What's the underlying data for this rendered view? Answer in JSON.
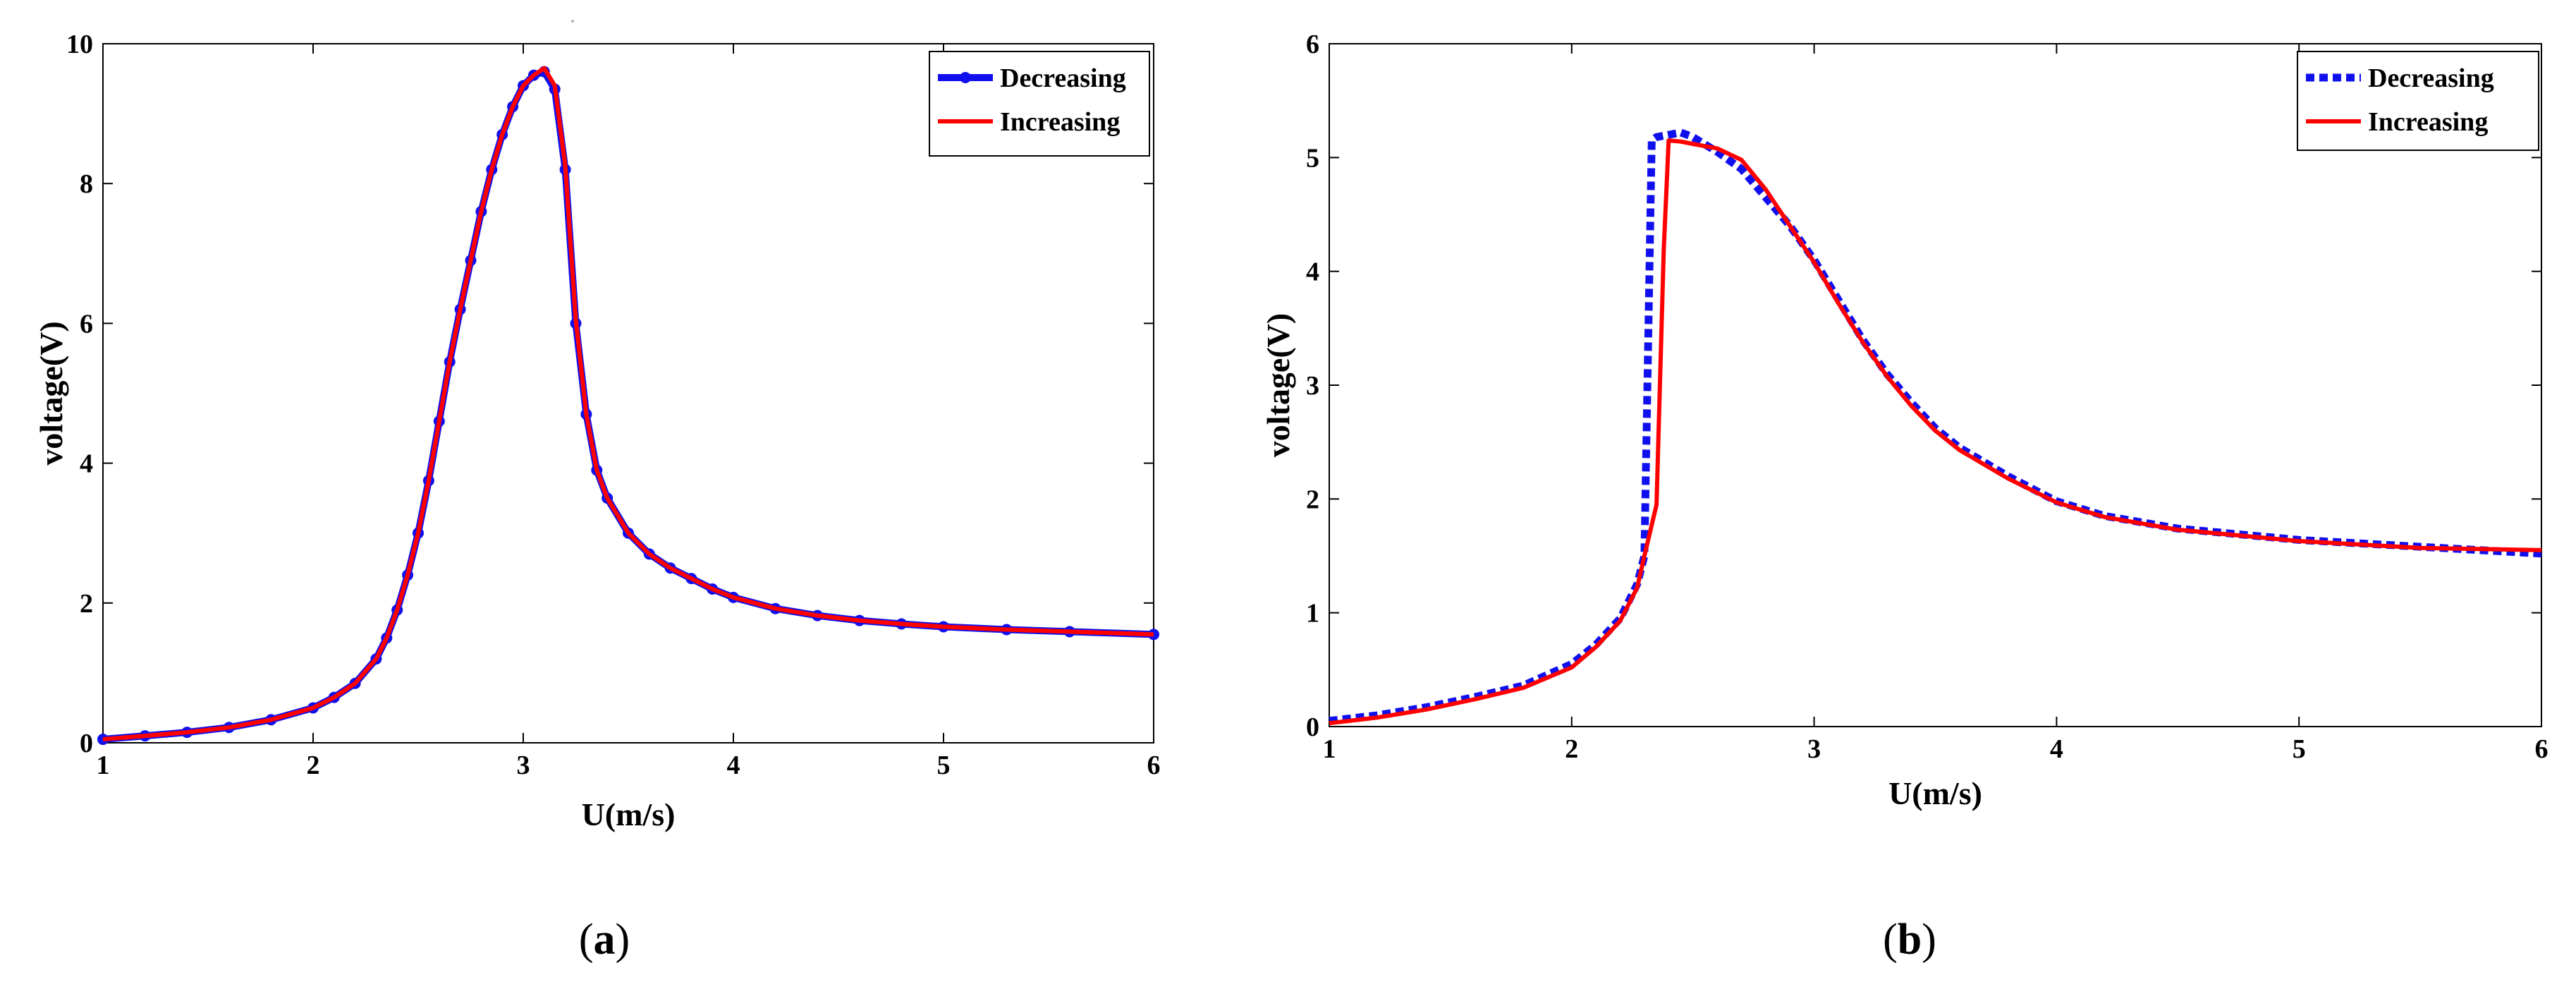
{
  "chart_data": [
    {
      "type": "line",
      "panel_label": "(a)",
      "panel_letter": "a",
      "xlabel": "U(m/s)",
      "ylabel": "voltage(V)",
      "xlim": [
        1,
        6
      ],
      "ylim": [
        0,
        10
      ],
      "xticks": [
        1,
        2,
        3,
        4,
        5,
        6
      ],
      "yticks": [
        0,
        2,
        4,
        6,
        8,
        10
      ],
      "grid": false,
      "legend_position": "top-right",
      "series": [
        {
          "name": "Decreasing",
          "color": "#1010ee",
          "style": "solid-markers",
          "x": [
            1.0,
            1.2,
            1.4,
            1.6,
            1.8,
            2.0,
            2.1,
            2.2,
            2.3,
            2.35,
            2.4,
            2.45,
            2.5,
            2.55,
            2.6,
            2.65,
            2.7,
            2.75,
            2.8,
            2.85,
            2.9,
            2.95,
            3.0,
            3.05,
            3.1,
            3.15,
            3.2,
            3.25,
            3.3,
            3.35,
            3.4,
            3.5,
            3.6,
            3.7,
            3.8,
            3.9,
            4.0,
            4.2,
            4.4,
            4.6,
            4.8,
            5.0,
            5.3,
            5.6,
            6.0
          ],
          "y": [
            0.05,
            0.1,
            0.15,
            0.22,
            0.33,
            0.5,
            0.65,
            0.85,
            1.2,
            1.5,
            1.9,
            2.4,
            3.0,
            3.75,
            4.6,
            5.45,
            6.2,
            6.9,
            7.6,
            8.2,
            8.7,
            9.1,
            9.4,
            9.55,
            9.6,
            9.35,
            8.2,
            6.0,
            4.7,
            3.9,
            3.5,
            3.0,
            2.7,
            2.5,
            2.35,
            2.2,
            2.08,
            1.92,
            1.82,
            1.75,
            1.7,
            1.66,
            1.62,
            1.59,
            1.55
          ]
        },
        {
          "name": "Increasing",
          "color": "#ff0000",
          "style": "solid",
          "x": [
            1.0,
            1.2,
            1.4,
            1.6,
            1.8,
            2.0,
            2.1,
            2.2,
            2.3,
            2.35,
            2.4,
            2.45,
            2.5,
            2.55,
            2.6,
            2.65,
            2.7,
            2.75,
            2.8,
            2.85,
            2.9,
            2.95,
            3.0,
            3.05,
            3.1,
            3.15,
            3.2,
            3.25,
            3.3,
            3.35,
            3.4,
            3.5,
            3.6,
            3.7,
            3.8,
            3.9,
            4.0,
            4.2,
            4.4,
            4.6,
            4.8,
            5.0,
            5.3,
            5.6,
            6.0
          ],
          "y": [
            0.05,
            0.1,
            0.15,
            0.22,
            0.33,
            0.5,
            0.65,
            0.85,
            1.2,
            1.5,
            1.9,
            2.4,
            3.0,
            3.75,
            4.6,
            5.45,
            6.2,
            6.9,
            7.6,
            8.2,
            8.7,
            9.1,
            9.4,
            9.55,
            9.65,
            9.4,
            8.25,
            6.05,
            4.7,
            3.9,
            3.5,
            3.0,
            2.7,
            2.5,
            2.35,
            2.2,
            2.08,
            1.92,
            1.82,
            1.75,
            1.7,
            1.66,
            1.62,
            1.59,
            1.55
          ]
        }
      ]
    },
    {
      "type": "line",
      "panel_label": "(b)",
      "panel_letter": "b",
      "xlabel": "U(m/s)",
      "ylabel": "voltage(V)",
      "xlim": [
        1,
        6
      ],
      "ylim": [
        0,
        6
      ],
      "xticks": [
        1,
        2,
        3,
        4,
        5,
        6
      ],
      "yticks": [
        0,
        1,
        2,
        3,
        4,
        5,
        6
      ],
      "grid": false,
      "legend_position": "top-right",
      "series": [
        {
          "name": "Decreasing",
          "color": "#1010ee",
          "style": "dotted",
          "x": [
            1.0,
            1.2,
            1.4,
            1.6,
            1.8,
            2.0,
            2.1,
            2.2,
            2.27,
            2.3,
            2.33,
            2.35,
            2.4,
            2.45,
            2.5,
            2.6,
            2.7,
            2.8,
            2.9,
            3.0,
            3.1,
            3.2,
            3.3,
            3.4,
            3.5,
            3.6,
            3.8,
            4.0,
            4.2,
            4.5,
            5.0,
            5.5,
            6.0
          ],
          "y": [
            0.05,
            0.1,
            0.17,
            0.26,
            0.36,
            0.55,
            0.72,
            0.95,
            1.25,
            1.5,
            5.15,
            5.18,
            5.2,
            5.22,
            5.18,
            5.05,
            4.9,
            4.65,
            4.4,
            4.1,
            3.75,
            3.4,
            3.1,
            2.85,
            2.62,
            2.45,
            2.2,
            1.98,
            1.85,
            1.74,
            1.64,
            1.58,
            1.52
          ]
        },
        {
          "name": "Increasing",
          "color": "#ff0000",
          "style": "solid",
          "x": [
            1.0,
            1.2,
            1.4,
            1.6,
            1.8,
            2.0,
            2.1,
            2.2,
            2.27,
            2.3,
            2.35,
            2.38,
            2.4,
            2.45,
            2.5,
            2.6,
            2.7,
            2.8,
            2.9,
            3.0,
            3.1,
            3.2,
            3.3,
            3.4,
            3.5,
            3.6,
            3.8,
            4.0,
            4.2,
            4.5,
            5.0,
            5.5,
            6.0
          ],
          "y": [
            0.03,
            0.08,
            0.15,
            0.24,
            0.34,
            0.52,
            0.7,
            0.93,
            1.22,
            1.5,
            1.95,
            4.2,
            5.15,
            5.14,
            5.12,
            5.08,
            4.98,
            4.72,
            4.4,
            4.08,
            3.72,
            3.38,
            3.08,
            2.82,
            2.6,
            2.43,
            2.18,
            1.97,
            1.84,
            1.73,
            1.63,
            1.57,
            1.55
          ]
        }
      ]
    }
  ]
}
